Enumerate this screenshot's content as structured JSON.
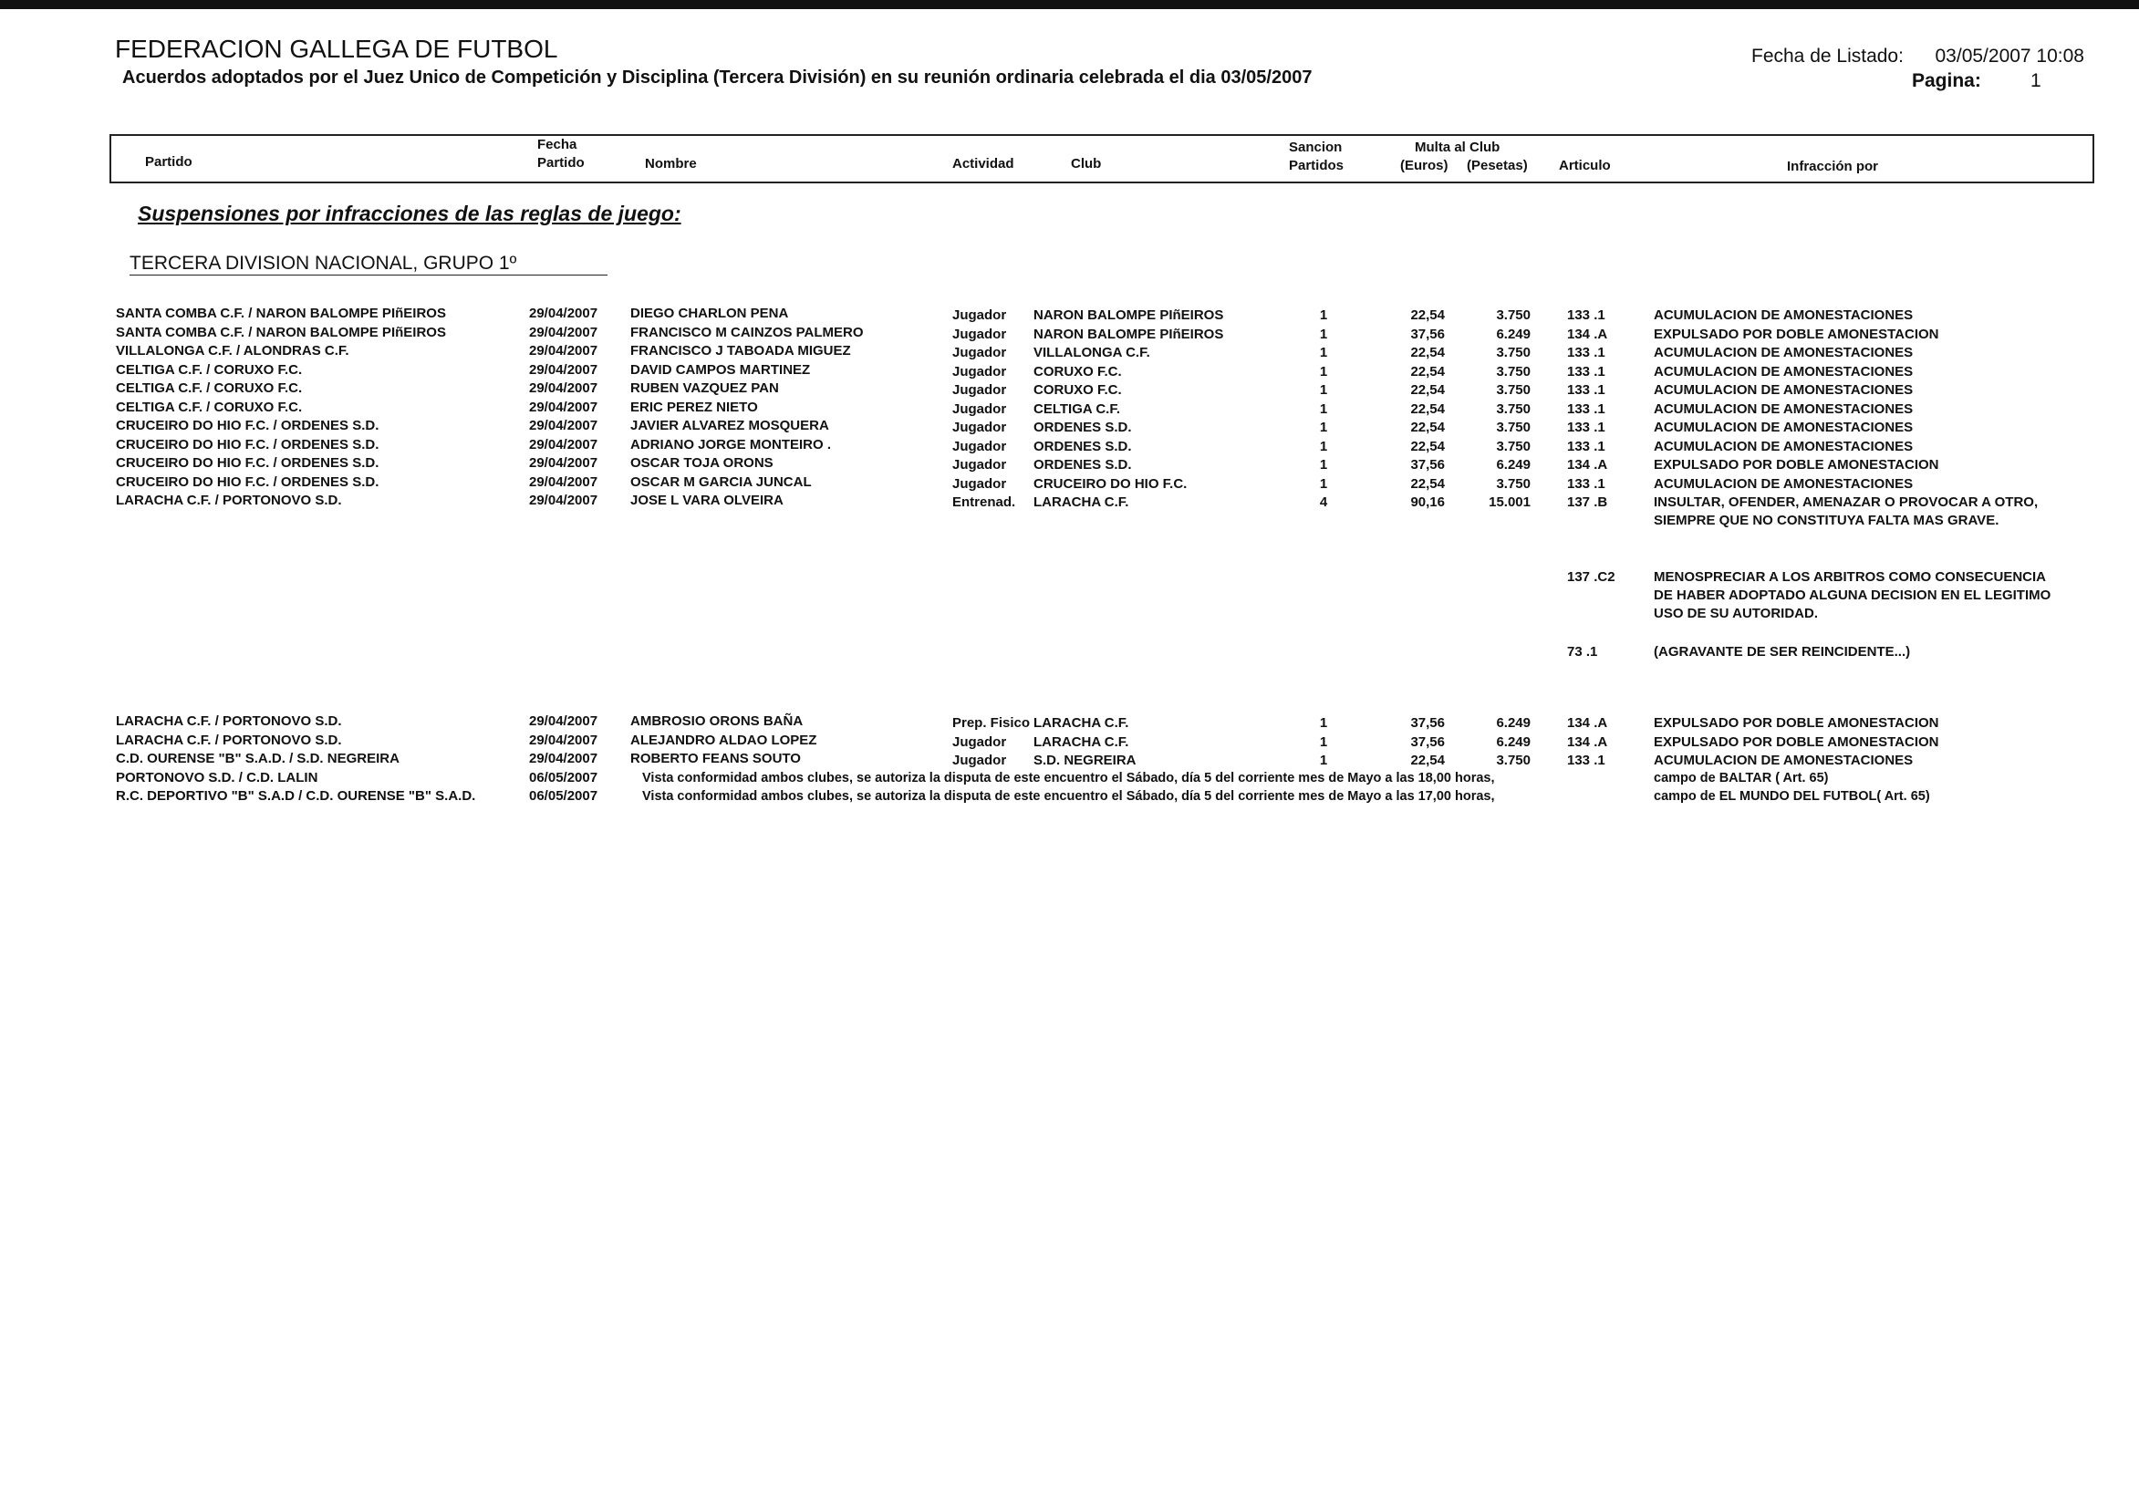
{
  "header": {
    "title": "FEDERACION GALLEGA DE FUTBOL",
    "subtitle": "Acuerdos adoptados por el Juez Unico de Competición y Disciplina (Tercera División) en su reunión ordinaria celebrada el dia 03/05/2007",
    "listing_label": "Fecha de Listado:",
    "listing_date": "03/05/2007 10:08",
    "page_label": "Pagina:",
    "page": "1"
  },
  "columns": {
    "partido": "Partido",
    "fecha_1": "Fecha",
    "fecha_2": "Partido",
    "nombre": "Nombre",
    "actividad": "Actividad",
    "club": "Club",
    "sancion_1": "Sancion",
    "sancion_2": "Partidos",
    "multa": "Multa al Club",
    "euros": "(Euros)",
    "pesetas": "(Pesetas)",
    "articulo": "Articulo",
    "infraccion": "Infracción por"
  },
  "section": "Suspensiones por infracciones de las reglas de juego:",
  "group": "TERCERA DIVISION NACIONAL, GRUPO 1º",
  "rows": [
    {
      "partido": "SANTA COMBA C.F. / NARON BALOMPE PIñEIROS",
      "fecha": "29/04/2007",
      "nombre": "DIEGO CHARLON PENA",
      "actividad": "Jugador",
      "club": "NARON BALOMPE PIñEIROS",
      "partidos": "1",
      "euros": "22,54",
      "pesetas": "3.750",
      "infracciones": [
        {
          "articulo": "133 .1",
          "texto": "ACUMULACION DE AMONESTACIONES"
        }
      ]
    },
    {
      "partido": "SANTA COMBA C.F. / NARON BALOMPE PIñEIROS",
      "fecha": "29/04/2007",
      "nombre": "FRANCISCO M CAINZOS PALMERO",
      "actividad": "Jugador",
      "club": "NARON BALOMPE PIñEIROS",
      "partidos": "1",
      "euros": "37,56",
      "pesetas": "6.249",
      "infracciones": [
        {
          "articulo": "134 .A",
          "texto": "EXPULSADO POR DOBLE AMONESTACION"
        }
      ]
    },
    {
      "partido": "VILLALONGA C.F. / ALONDRAS C.F.",
      "fecha": "29/04/2007",
      "nombre": "FRANCISCO J TABOADA MIGUEZ",
      "actividad": "Jugador",
      "club": "VILLALONGA C.F.",
      "partidos": "1",
      "euros": "22,54",
      "pesetas": "3.750",
      "infracciones": [
        {
          "articulo": "133 .1",
          "texto": "ACUMULACION DE AMONESTACIONES"
        }
      ]
    },
    {
      "partido": "CELTIGA C.F. / CORUXO F.C.",
      "fecha": "29/04/2007",
      "nombre": "DAVID CAMPOS MARTINEZ",
      "actividad": "Jugador",
      "club": "CORUXO F.C.",
      "partidos": "1",
      "euros": "22,54",
      "pesetas": "3.750",
      "infracciones": [
        {
          "articulo": "133 .1",
          "texto": "ACUMULACION DE AMONESTACIONES"
        }
      ]
    },
    {
      "partido": "CELTIGA C.F. / CORUXO F.C.",
      "fecha": "29/04/2007",
      "nombre": "RUBEN VAZQUEZ PAN",
      "actividad": "Jugador",
      "club": "CORUXO F.C.",
      "partidos": "1",
      "euros": "22,54",
      "pesetas": "3.750",
      "infracciones": [
        {
          "articulo": "133 .1",
          "texto": "ACUMULACION DE AMONESTACIONES"
        }
      ]
    },
    {
      "partido": "CELTIGA C.F. / CORUXO F.C.",
      "fecha": "29/04/2007",
      "nombre": "ERIC PEREZ NIETO",
      "actividad": "Jugador",
      "club": "CELTIGA C.F.",
      "partidos": "1",
      "euros": "22,54",
      "pesetas": "3.750",
      "infracciones": [
        {
          "articulo": "133 .1",
          "texto": "ACUMULACION DE AMONESTACIONES"
        }
      ]
    },
    {
      "partido": "CRUCEIRO DO HIO F.C. / ORDENES S.D.",
      "fecha": "29/04/2007",
      "nombre": "JAVIER ALVAREZ MOSQUERA",
      "actividad": "Jugador",
      "club": "ORDENES S.D.",
      "partidos": "1",
      "euros": "22,54",
      "pesetas": "3.750",
      "infracciones": [
        {
          "articulo": "133 .1",
          "texto": "ACUMULACION DE AMONESTACIONES"
        }
      ]
    },
    {
      "partido": "CRUCEIRO DO HIO F.C. / ORDENES S.D.",
      "fecha": "29/04/2007",
      "nombre": "ADRIANO JORGE MONTEIRO .",
      "actividad": "Jugador",
      "club": "ORDENES S.D.",
      "partidos": "1",
      "euros": "22,54",
      "pesetas": "3.750",
      "infracciones": [
        {
          "articulo": "133 .1",
          "texto": "ACUMULACION DE AMONESTACIONES"
        }
      ]
    },
    {
      "partido": "CRUCEIRO DO HIO F.C. / ORDENES S.D.",
      "fecha": "29/04/2007",
      "nombre": "OSCAR TOJA ORONS",
      "actividad": "Jugador",
      "club": "ORDENES S.D.",
      "partidos": "1",
      "euros": "37,56",
      "pesetas": "6.249",
      "infracciones": [
        {
          "articulo": "134 .A",
          "texto": "EXPULSADO POR DOBLE AMONESTACION"
        }
      ]
    },
    {
      "partido": "CRUCEIRO DO HIO F.C. / ORDENES S.D.",
      "fecha": "29/04/2007",
      "nombre": "OSCAR M GARCIA JUNCAL",
      "actividad": "Jugador",
      "club": "CRUCEIRO DO HIO F.C.",
      "partidos": "1",
      "euros": "22,54",
      "pesetas": "3.750",
      "infracciones": [
        {
          "articulo": "133 .1",
          "texto": "ACUMULACION DE AMONESTACIONES"
        }
      ]
    },
    {
      "partido": "LARACHA C.F. / PORTONOVO S.D.",
      "fecha": "29/04/2007",
      "nombre": "JOSE L VARA OLVEIRA",
      "actividad": "Entrenad.",
      "club": "LARACHA C.F.",
      "partidos": "4",
      "euros": "90,16",
      "pesetas": "15.001",
      "infracciones": [
        {
          "articulo": "137 .B",
          "texto": "INSULTAR, OFENDER, AMENAZAR O PROVOCAR A OTRO, SIEMPRE QUE NO CONSTITUYA FALTA MAS GRAVE."
        },
        {
          "articulo": "137 .C2",
          "texto": "MENOSPRECIAR A LOS ARBITROS COMO CONSECUENCIA DE HABER ADOPTADO ALGUNA DECISION EN EL LEGITIMO USO DE SU AUTORIDAD."
        },
        {
          "articulo": "73 .1",
          "texto": "(AGRAVANTE DE SER REINCIDENTE...)"
        }
      ]
    },
    {
      "partido": "LARACHA C.F. / PORTONOVO S.D.",
      "fecha": "29/04/2007",
      "nombre": "AMBROSIO ORONS BAÑA",
      "actividad": "Prep. Fisico",
      "club": "LARACHA C.F.",
      "partidos": "1",
      "euros": "37,56",
      "pesetas": "6.249",
      "infracciones": [
        {
          "articulo": "134 .A",
          "texto": "EXPULSADO POR DOBLE AMONESTACION"
        }
      ]
    },
    {
      "partido": "LARACHA C.F. / PORTONOVO S.D.",
      "fecha": "29/04/2007",
      "nombre": "ALEJANDRO ALDAO LOPEZ",
      "actividad": "Jugador",
      "club": "LARACHA C.F.",
      "partidos": "1",
      "euros": "37,56",
      "pesetas": "6.249",
      "infracciones": [
        {
          "articulo": "134 .A",
          "texto": "EXPULSADO POR DOBLE AMONESTACION"
        }
      ]
    },
    {
      "partido": "C.D. OURENSE \"B\" S.A.D. / S.D. NEGREIRA",
      "fecha": "29/04/2007",
      "nombre": "ROBERTO FEANS SOUTO",
      "actividad": "Jugador",
      "club": "S.D. NEGREIRA",
      "partidos": "1",
      "euros": "22,54",
      "pesetas": "3.750",
      "infracciones": [
        {
          "articulo": "133 .1",
          "texto": "ACUMULACION DE AMONESTACIONES"
        }
      ]
    },
    {
      "partido": "PORTONOVO S.D. / C.D. LALIN",
      "fecha": "06/05/2007",
      "nota": "Vista conformidad ambos clubes, se autoriza la disputa de este encuentro el Sábado, día 5 del corriente mes de Mayo a las 18,00  horas,",
      "campo": "campo de BALTAR ( Art. 65)"
    },
    {
      "partido": "R.C. DEPORTIVO \"B\" S.A.D / C.D. OURENSE \"B\" S.A.D.",
      "fecha": "06/05/2007",
      "nota": "Vista conformidad ambos clubes, se autoriza la disputa de este encuentro el Sábado, día 5 del corriente mes de Mayo a las 17,00  horas,",
      "campo": "campo de EL MUNDO DEL FUTBOL( Art. 65)"
    }
  ]
}
